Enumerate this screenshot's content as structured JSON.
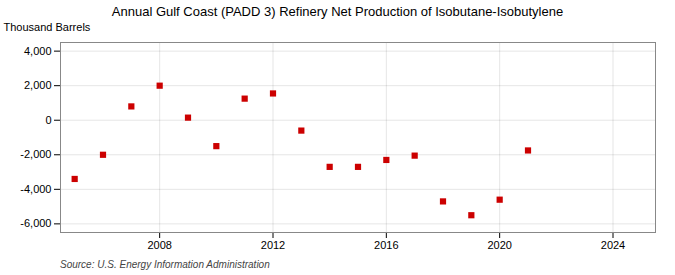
{
  "chart_data": {
    "type": "scatter",
    "title": "Annual Gulf Coast (PADD 3) Refinery Net Production of Isobutane-Isobutylene",
    "ylabel": "Thousand Barrels",
    "source": "Source: U.S. Energy Information Administration",
    "x": [
      2005,
      2006,
      2007,
      2008,
      2009,
      2010,
      2011,
      2012,
      2013,
      2014,
      2015,
      2016,
      2017,
      2018,
      2019,
      2020,
      2021
    ],
    "values": [
      -3400,
      -2000,
      800,
      2000,
      150,
      -1500,
      1250,
      1550,
      -600,
      -2700,
      -2700,
      -2300,
      -2050,
      -4700,
      -5500,
      -4600,
      -1750
    ],
    "color": "#cc0000",
    "marker": "square",
    "xlim": [
      2004.5,
      2025.5
    ],
    "xticks": [
      2008,
      2012,
      2016,
      2020,
      2024
    ],
    "ylim": [
      -6500,
      4500
    ],
    "yticks": [
      {
        "value": -6000,
        "label": "-6,000"
      },
      {
        "value": -4000,
        "label": "-4,000"
      },
      {
        "value": -2000,
        "label": "-2,000"
      },
      0,
      {
        "value": 2000,
        "label": "2,000"
      },
      {
        "value": 4000,
        "label": "4,000"
      }
    ],
    "grid": true
  }
}
